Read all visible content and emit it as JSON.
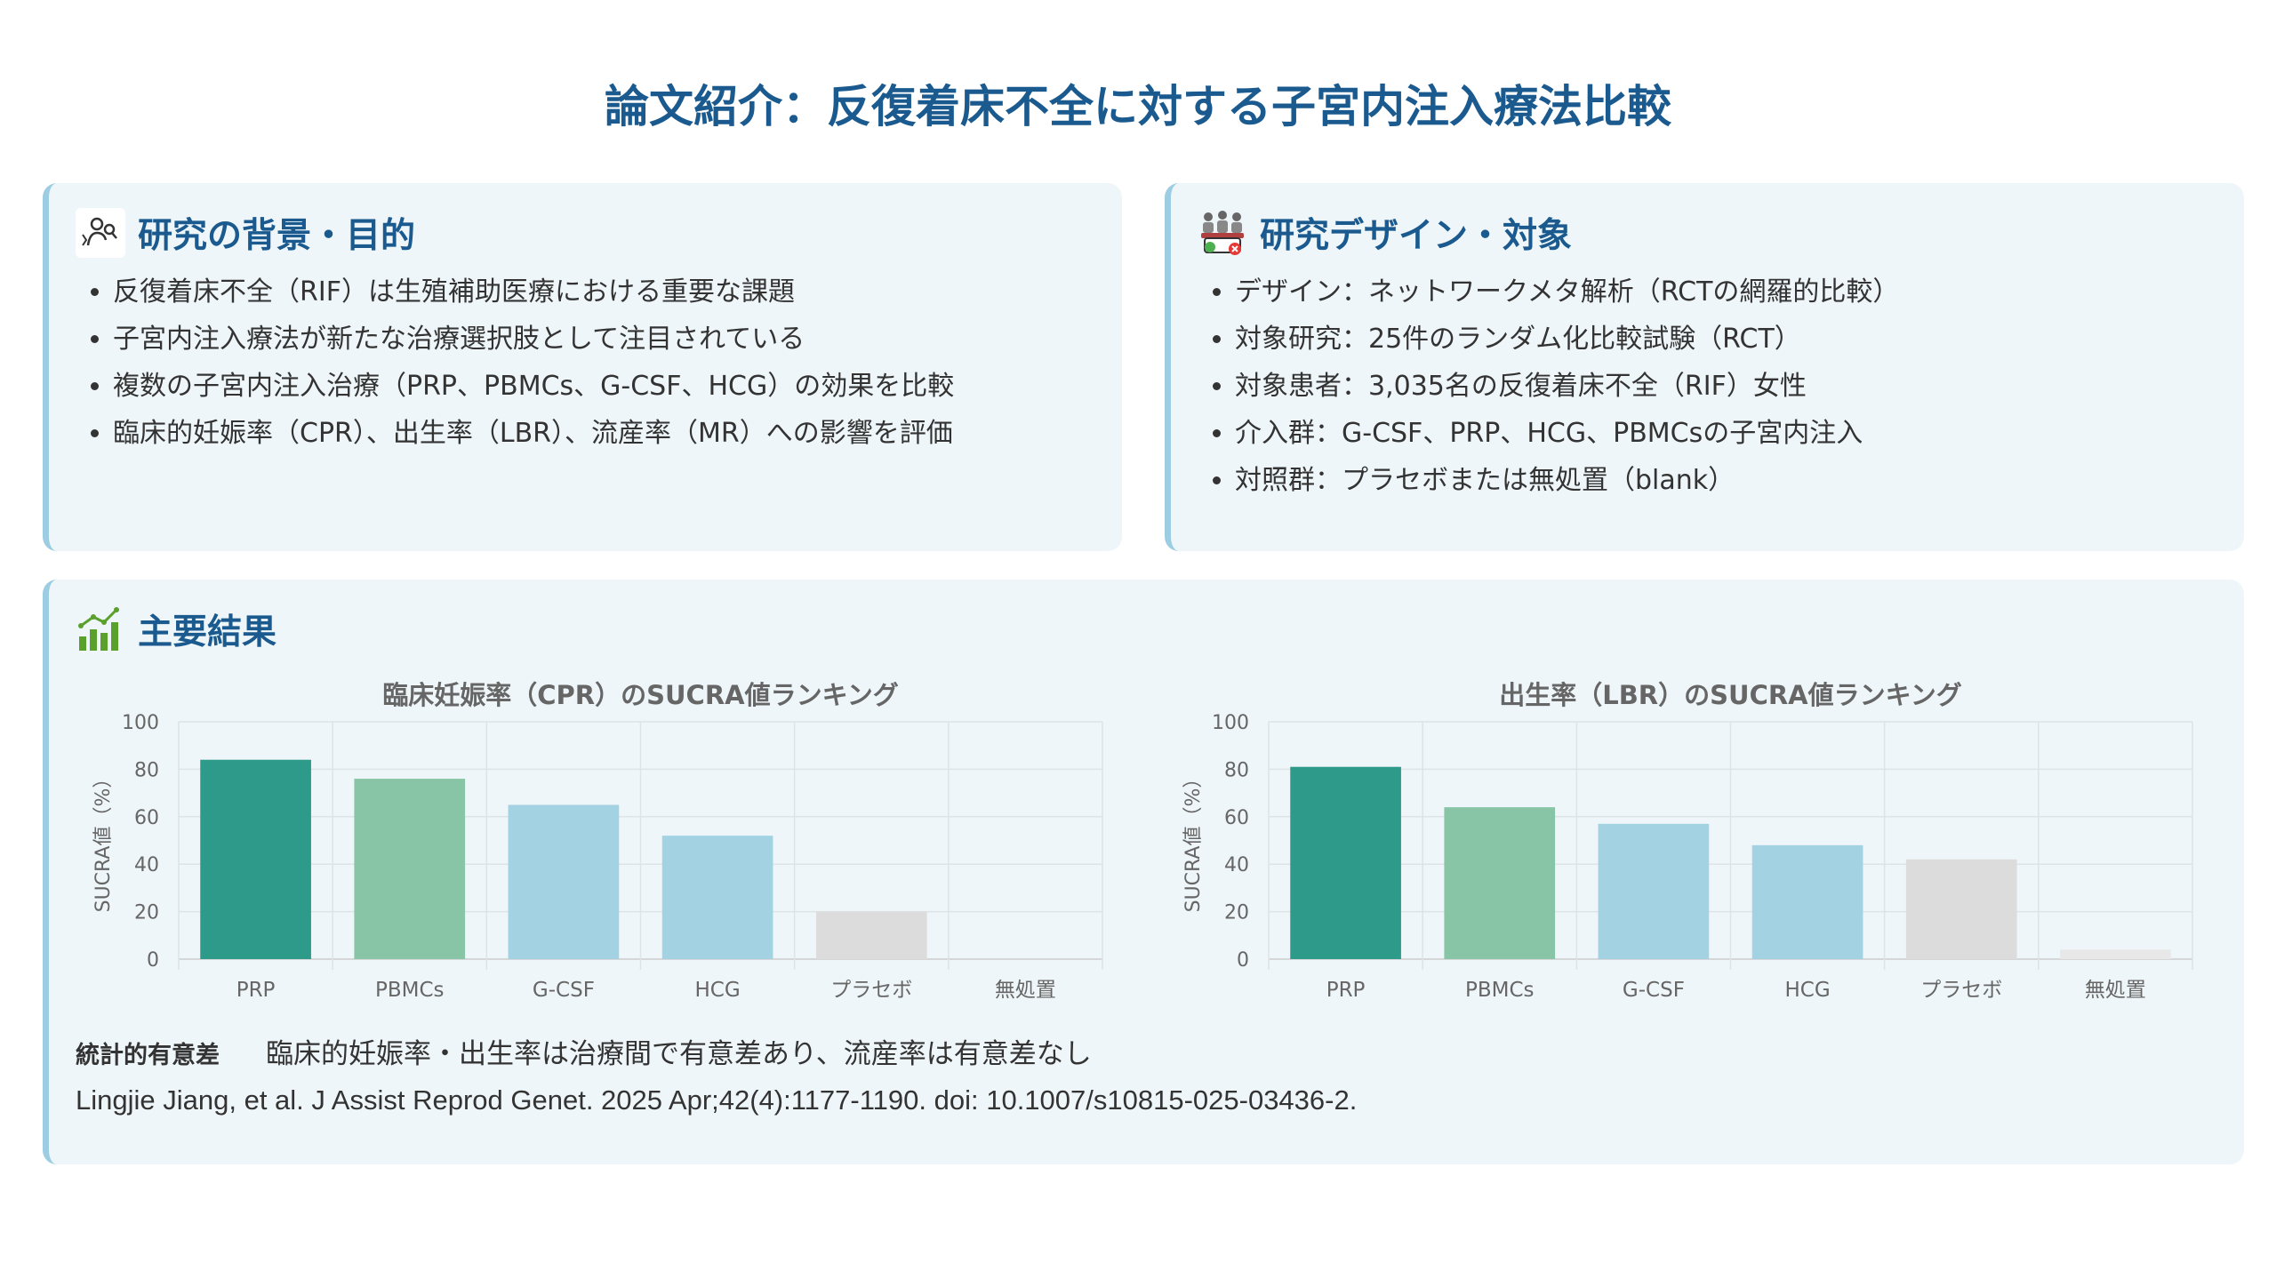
{
  "title": "論文紹介：反復着床不全に対する子宮内注入療法比較",
  "background": {
    "title": "研究の背景・目的",
    "icon": "researcher-icon",
    "items": [
      "反復着床不全（RIF）は生殖補助医療における重要な課題",
      "子宮内注入療法が新たな治療選択肢として注目されている",
      "複数の子宮内注入治療（PRP、PBMCs、G-CSF、HCG）の効果を比較",
      "臨床的妊娠率（CPR）、出生率（LBR）、流産率（MR）への影響を評価"
    ]
  },
  "design": {
    "title": "研究デザイン・対象",
    "icon": "study-group-icon",
    "items": [
      "デザイン：ネットワークメタ解析（RCTの網羅的比較）",
      "対象研究：25件のランダム化比較試験（RCT）",
      "対象患者：3,035名の反復着床不全（RIF）女性",
      "介入群：G-CSF、PRP、HCG、PBMCsの子宮内注入",
      "対照群：プラセボまたは無処置（blank）"
    ]
  },
  "results": {
    "title": "主要結果",
    "icon": "bar-chart-trend-icon",
    "stat_label": "統計的有意差",
    "stat_text": "臨床的妊娠率・出生率は治療間で有意差あり、流産率は有意差なし",
    "citation": "Lingjie Jiang, et al.  J Assist Reprod Genet. 2025 Apr;42(4):1177-1190. doi: 10.1007/s10815-025-03436-2."
  },
  "chart_data": [
    {
      "type": "bar",
      "title": "臨床妊娠率（CPR）のSUCRA値ランキング",
      "categories": [
        "PRP",
        "PBMCs",
        "G-CSF",
        "HCG",
        "プラセボ",
        "無処置"
      ],
      "values": [
        84,
        76,
        65,
        52,
        20,
        0
      ],
      "colors": [
        "#2e9a8a",
        "#88c4a6",
        "#a3d2e3",
        "#a3d2e3",
        "#dcdcdc",
        "#dcdcdc"
      ],
      "xlabel": "",
      "ylabel": "SUCRA値（%）",
      "ylim": [
        0,
        100
      ],
      "yticks": [
        0,
        20,
        40,
        60,
        80,
        100
      ],
      "grid": true
    },
    {
      "type": "bar",
      "title": "出生率（LBR）のSUCRA値ランキング",
      "categories": [
        "PRP",
        "PBMCs",
        "G-CSF",
        "HCG",
        "プラセボ",
        "無処置"
      ],
      "values": [
        81,
        64,
        57,
        48,
        42,
        4
      ],
      "colors": [
        "#2e9a8a",
        "#88c4a6",
        "#a3d2e3",
        "#a3d2e3",
        "#dcdcdc",
        "#e8e8e8"
      ],
      "xlabel": "",
      "ylabel": "SUCRA値（%）",
      "ylim": [
        0,
        100
      ],
      "yticks": [
        0,
        20,
        40,
        60,
        80,
        100
      ],
      "grid": true
    }
  ]
}
